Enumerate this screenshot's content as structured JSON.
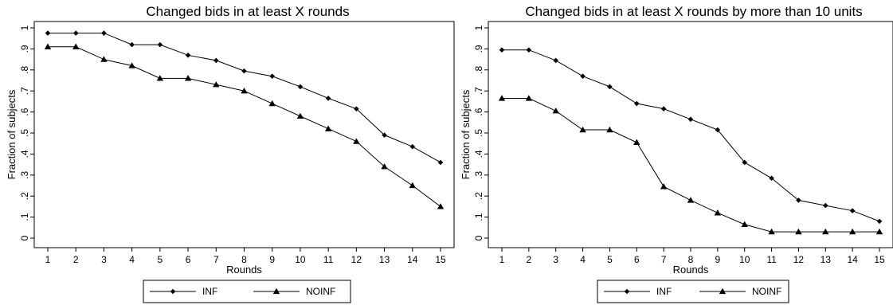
{
  "chart_data": [
    {
      "type": "line",
      "title": "Changed bids in at least X rounds",
      "xlabel": "Rounds",
      "ylabel": "Fraction of subjects",
      "x": [
        1,
        2,
        3,
        4,
        5,
        6,
        7,
        8,
        9,
        10,
        11,
        12,
        13,
        14,
        15
      ],
      "ylim": [
        0,
        1
      ],
      "yticks": [
        "0",
        ".1",
        ".2",
        ".3",
        ".4",
        ".5",
        ".6",
        ".7",
        ".8",
        ".9",
        "1"
      ],
      "grid": false,
      "legend": "bottom",
      "series": [
        {
          "name": "INF",
          "marker": "diamond",
          "values": [
            0.975,
            0.975,
            0.975,
            0.92,
            0.92,
            0.87,
            0.845,
            0.795,
            0.77,
            0.72,
            0.665,
            0.615,
            0.49,
            0.435,
            0.36
          ]
        },
        {
          "name": "NOINF",
          "marker": "triangle",
          "values": [
            0.91,
            0.91,
            0.85,
            0.82,
            0.76,
            0.76,
            0.73,
            0.7,
            0.64,
            0.58,
            0.52,
            0.46,
            0.34,
            0.25,
            0.15
          ]
        }
      ]
    },
    {
      "type": "line",
      "title": "Changed bids in at least X rounds by more than 10 units",
      "xlabel": "Rounds",
      "ylabel": "Fraction of subjects",
      "x": [
        1,
        2,
        3,
        4,
        5,
        6,
        7,
        8,
        9,
        10,
        11,
        12,
        13,
        14,
        15
      ],
      "ylim": [
        0,
        1
      ],
      "yticks": [
        "0",
        ".1",
        ".2",
        ".3",
        ".4",
        ".5",
        ".6",
        ".7",
        ".8",
        ".9",
        "1"
      ],
      "grid": false,
      "legend": "bottom",
      "series": [
        {
          "name": "INF",
          "marker": "diamond",
          "values": [
            0.895,
            0.895,
            0.845,
            0.77,
            0.72,
            0.64,
            0.615,
            0.565,
            0.515,
            0.36,
            0.285,
            0.18,
            0.155,
            0.13,
            0.08
          ]
        },
        {
          "name": "NOINF",
          "marker": "triangle",
          "values": [
            0.665,
            0.665,
            0.605,
            0.515,
            0.515,
            0.455,
            0.245,
            0.18,
            0.12,
            0.065,
            0.03,
            0.03,
            0.03,
            0.03,
            0.03
          ]
        }
      ]
    }
  ]
}
